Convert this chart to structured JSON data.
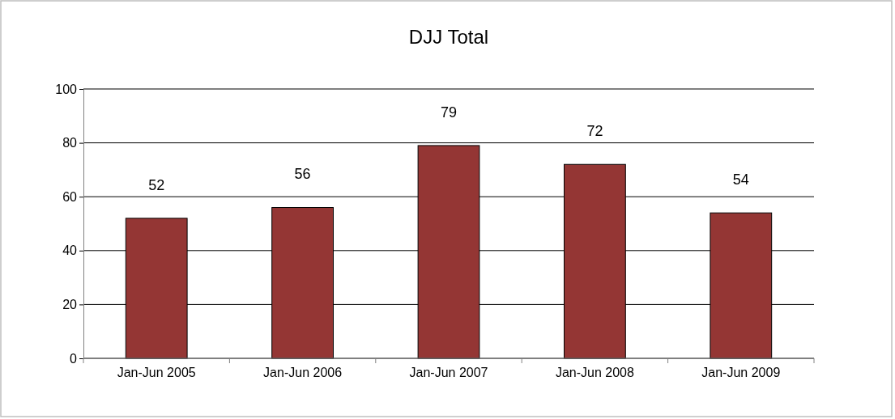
{
  "chart_data": {
    "type": "bar",
    "title": "DJJ Total",
    "categories": [
      "Jan-Jun 2005",
      "Jan-Jun 2006",
      "Jan-Jun 2007",
      "Jan-Jun 2008",
      "Jan-Jun 2009"
    ],
    "values": [
      52,
      56,
      79,
      72,
      54
    ],
    "color": "#943634",
    "ylim": [
      0,
      100
    ],
    "yticks": [
      0,
      20,
      40,
      60,
      80,
      100
    ],
    "grid": "y",
    "data_labels": true
  }
}
